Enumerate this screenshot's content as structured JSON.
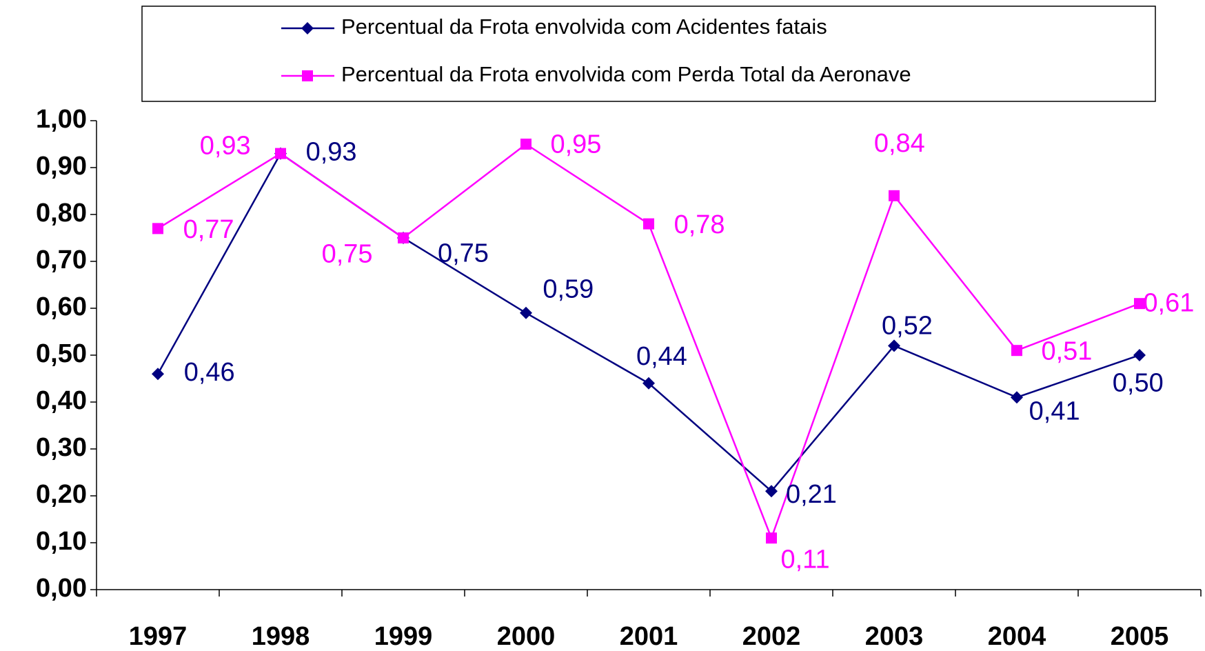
{
  "chart_data": {
    "type": "line",
    "categories": [
      "1997",
      "1998",
      "1999",
      "2000",
      "2001",
      "2002",
      "2003",
      "2004",
      "2005"
    ],
    "series": [
      {
        "name": "Percentual da Frota envolvida com Acidentes fatais",
        "color": "#000080",
        "marker": "diamond",
        "values": [
          0.46,
          0.93,
          0.75,
          0.59,
          0.44,
          0.21,
          0.52,
          0.41,
          0.5
        ],
        "value_labels": [
          "0,46",
          "0,93",
          "0,75",
          "0,59",
          "0,44",
          "0,21",
          "0,52",
          "0,41",
          "0,50"
        ]
      },
      {
        "name": "Percentual da Frota envolvida com Perda Total da Aeronave",
        "color": "#ff00ff",
        "marker": "square",
        "values": [
          0.77,
          0.93,
          0.75,
          0.95,
          0.78,
          0.11,
          0.84,
          0.51,
          0.61
        ],
        "value_labels": [
          "0,77",
          "0,93",
          "0,75",
          "0,95",
          "0,78",
          "0,11",
          "0,84",
          "0,51",
          "0,61"
        ]
      }
    ],
    "ylim": [
      0,
      1
    ],
    "yticks": [
      {
        "value": 0,
        "label": "0,00"
      },
      {
        "value": 0.1,
        "label": "0,10"
      },
      {
        "value": 0.2,
        "label": "0,20"
      },
      {
        "value": 0.3,
        "label": "0,30"
      },
      {
        "value": 0.4,
        "label": "0,40"
      },
      {
        "value": 0.5,
        "label": "0,50"
      },
      {
        "value": 0.6,
        "label": "0,60"
      },
      {
        "value": 0.7,
        "label": "0,70"
      },
      {
        "value": 0.8,
        "label": "0,80"
      },
      {
        "value": 0.9,
        "label": "0,90"
      },
      {
        "value": 1,
        "label": "1,00"
      }
    ],
    "grid": false,
    "legend": "top"
  }
}
